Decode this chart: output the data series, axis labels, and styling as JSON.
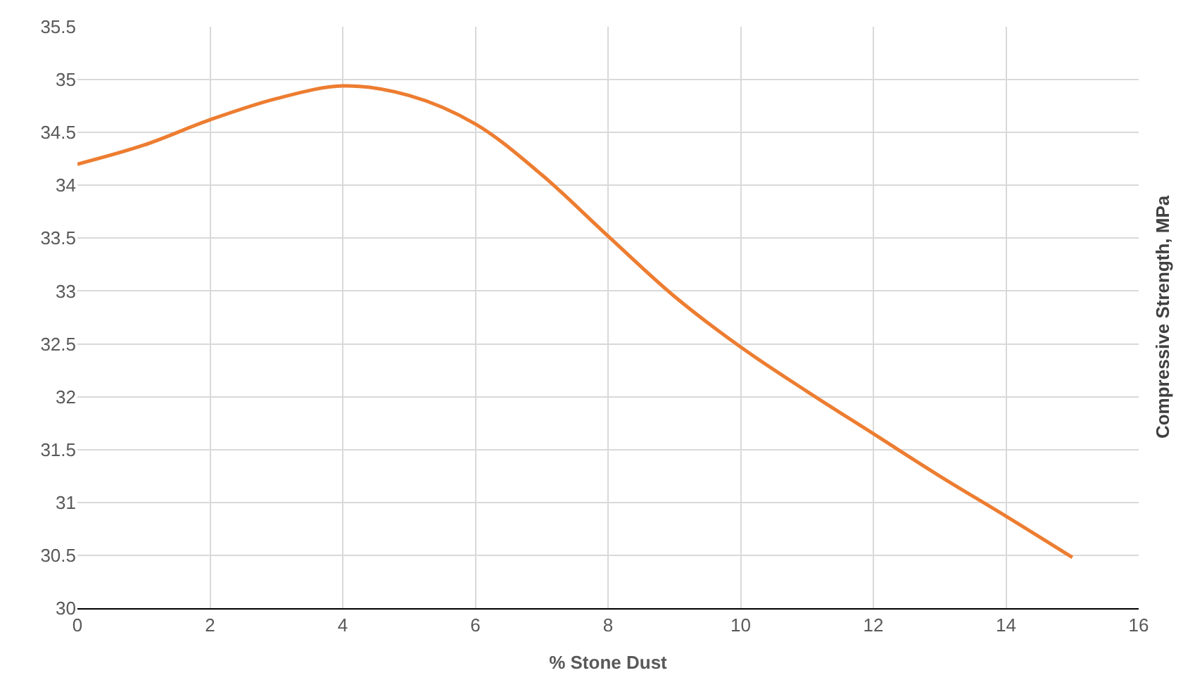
{
  "chart_data": {
    "type": "line",
    "xlabel": "% Stone Dust",
    "ylabel": "Compressive Strength, MPa",
    "x": [
      0,
      1,
      2,
      3,
      4,
      5,
      6,
      7,
      8,
      9,
      10,
      11,
      12,
      13,
      14,
      15
    ],
    "series": [
      {
        "color": "#ed7d31",
        "values": [
          34.2,
          34.38,
          34.62,
          34.82,
          34.94,
          34.85,
          34.58,
          34.1,
          33.52,
          32.95,
          32.47,
          32.05,
          31.65,
          31.25,
          30.87,
          30.48
        ]
      }
    ],
    "xlim": [
      0,
      16
    ],
    "xticks": [
      0,
      2,
      4,
      6,
      8,
      10,
      12,
      14,
      16
    ],
    "ylim": [
      30,
      35.5
    ],
    "yticks": [
      30,
      30.5,
      31,
      31.5,
      32,
      32.5,
      33,
      33.5,
      34,
      34.5,
      35,
      35.5
    ],
    "grid": true,
    "legend": false,
    "marker": "none",
    "line_style": "solid"
  }
}
